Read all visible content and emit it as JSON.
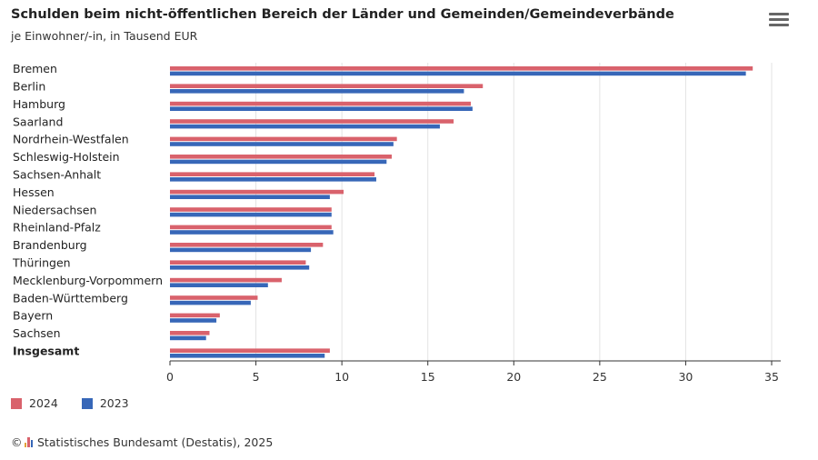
{
  "header": {
    "title": "Schulden beim nicht-öffentlichen Bereich der Länder und Gemeinden/Gemeindeverbände",
    "subtitle": "je Einwohner/-in, in Tausend EUR",
    "menu_icon": "hamburger-menu-icon"
  },
  "footer": {
    "copyright_symbol": "©",
    "source": "Statistisches Bundesamt (Destatis), 2025",
    "logo_icon": "destatis-logo-icon"
  },
  "colors": {
    "series_2024": "#d9626c",
    "series_2023": "#3767b8",
    "grid": "#e3e3e3",
    "axis": "#333333"
  },
  "chart_data": {
    "type": "bar",
    "orientation": "horizontal",
    "categories": [
      "Bremen",
      "Berlin",
      "Hamburg",
      "Saarland",
      "Nordrhein-Westfalen",
      "Schleswig-Holstein",
      "Sachsen-Anhalt",
      "Hessen",
      "Niedersachsen",
      "Rheinland-Pfalz",
      "Brandenburg",
      "Thüringen",
      "Mecklenburg-Vorpommern",
      "Baden-Württemberg",
      "Bayern",
      "Sachsen",
      "Insgesamt"
    ],
    "bold_categories": [
      "Insgesamt"
    ],
    "series": [
      {
        "name": "2024",
        "color": "#d9626c",
        "values": [
          33.9,
          18.2,
          17.5,
          16.5,
          13.2,
          12.9,
          11.9,
          10.1,
          9.4,
          9.4,
          8.9,
          7.9,
          6.5,
          5.1,
          2.9,
          2.3,
          9.3
        ]
      },
      {
        "name": "2023",
        "color": "#3767b8",
        "values": [
          33.5,
          17.1,
          17.6,
          15.7,
          13.0,
          12.6,
          12.0,
          9.3,
          9.4,
          9.5,
          8.2,
          8.1,
          5.7,
          4.7,
          2.7,
          2.1,
          9.0
        ]
      }
    ],
    "xlim": [
      0,
      35
    ],
    "xticks": [
      0,
      5,
      10,
      15,
      20,
      25,
      30,
      35
    ],
    "grid": true,
    "legend_position": "bottom-left",
    "title": "Schulden beim nicht-öffentlichen Bereich der Länder und Gemeinden/Gemeindeverbände",
    "subtitle": "je Einwohner/-in, in Tausend EUR"
  }
}
